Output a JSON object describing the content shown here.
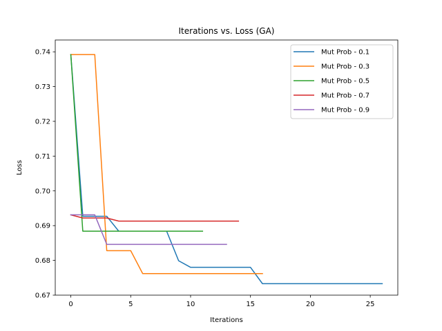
{
  "chart_data": {
    "type": "line",
    "title": "Iterations vs. Loss (GA)",
    "xlabel": "Iterations",
    "ylabel": "Loss",
    "xlim": [
      -1.3,
      27.3
    ],
    "ylim": [
      0.67,
      0.7434
    ],
    "xticks": [
      0,
      5,
      10,
      15,
      20,
      25
    ],
    "yticks": [
      0.67,
      0.68,
      0.69,
      0.7,
      0.71,
      0.72,
      0.73,
      0.74
    ],
    "ytick_labels": [
      "0.67",
      "0.68",
      "0.69",
      "0.70",
      "0.71",
      "0.72",
      "0.73",
      "0.74"
    ],
    "grid": false,
    "legend_position": "top-right",
    "series": [
      {
        "name": "Mut Prob - 0.1",
        "color": "#1f77b4",
        "x": [
          0,
          1,
          2,
          3,
          4,
          5,
          6,
          7,
          8,
          9,
          10,
          11,
          12,
          13,
          14,
          15,
          16,
          17,
          18,
          19,
          20,
          21,
          22,
          23,
          24,
          25,
          26
        ],
        "y": [
          0.7392,
          0.6927,
          0.6927,
          0.6927,
          0.6884,
          0.6884,
          0.6884,
          0.6884,
          0.6884,
          0.6799,
          0.678,
          0.678,
          0.678,
          0.678,
          0.678,
          0.678,
          0.6733,
          0.6733,
          0.6733,
          0.6733,
          0.6733,
          0.6733,
          0.6733,
          0.6733,
          0.6733,
          0.6733,
          0.6733
        ]
      },
      {
        "name": "Mut Prob - 0.3",
        "color": "#ff7f0e",
        "x": [
          0,
          1,
          2,
          3,
          4,
          5,
          6,
          7,
          8,
          9,
          10,
          11,
          12,
          13,
          14,
          15,
          16
        ],
        "y": [
          0.7392,
          0.7392,
          0.7392,
          0.6828,
          0.6828,
          0.6828,
          0.6762,
          0.6762,
          0.6762,
          0.6762,
          0.6762,
          0.6762,
          0.6762,
          0.6762,
          0.6762,
          0.6762,
          0.6762
        ]
      },
      {
        "name": "Mut Prob - 0.5",
        "color": "#2ca02c",
        "x": [
          0,
          1,
          2,
          3,
          4,
          5,
          6,
          7,
          8,
          9,
          10,
          11
        ],
        "y": [
          0.7392,
          0.6884,
          0.6884,
          0.6884,
          0.6884,
          0.6884,
          0.6884,
          0.6884,
          0.6884,
          0.6884,
          0.6884,
          0.6884
        ]
      },
      {
        "name": "Mut Prob - 0.7",
        "color": "#d62728",
        "x": [
          0,
          1,
          2,
          3,
          4,
          5,
          6,
          7,
          8,
          9,
          10,
          11,
          12,
          13,
          14
        ],
        "y": [
          0.6931,
          0.6922,
          0.6922,
          0.6922,
          0.6913,
          0.6913,
          0.6913,
          0.6913,
          0.6913,
          0.6913,
          0.6913,
          0.6913,
          0.6913,
          0.6913,
          0.6913
        ]
      },
      {
        "name": "Mut Prob - 0.9",
        "color": "#9467bd",
        "x": [
          0,
          1,
          2,
          3,
          4,
          5,
          6,
          7,
          8,
          9,
          10,
          11,
          12,
          13
        ],
        "y": [
          0.6931,
          0.6931,
          0.6931,
          0.6846,
          0.6846,
          0.6846,
          0.6846,
          0.6846,
          0.6846,
          0.6846,
          0.6846,
          0.6846,
          0.6846,
          0.6846
        ]
      }
    ]
  }
}
